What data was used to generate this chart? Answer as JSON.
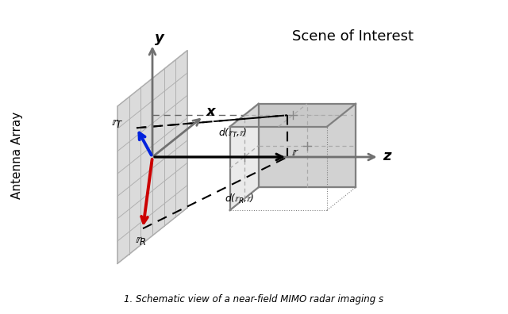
{
  "background_color": "#ffffff",
  "grid_color": "#b0b0b0",
  "grid_fill": "#d8d8d8",
  "axis_color": "#707070",
  "box_color": "#808080",
  "box_fill_front": "#e4e4e4",
  "box_fill_top": "#d0d0d0",
  "box_fill_right": "#c4c4c4",
  "arrow_black": "#000000",
  "arrow_blue": "#0022dd",
  "arrow_red": "#cc0000",
  "scene_label": "Scene of Interest",
  "antenna_label": "Antenna Array",
  "x_label": "x",
  "y_label": "y",
  "z_label": "z",
  "rT_label": "$\\mathbb{r}_T$",
  "rR_label": "$\\mathbb{r}_R$",
  "r_label": "$\\mathbb{r}$",
  "dT_label": "d($\\mathbb{r}_T$,$\\mathbb{r}$)",
  "dR_label": "d($\\mathbb{r}_R$,$\\mathbb{r}$)",
  "caption": "1. Schematic view of a near-field MIMO radar imaging s"
}
